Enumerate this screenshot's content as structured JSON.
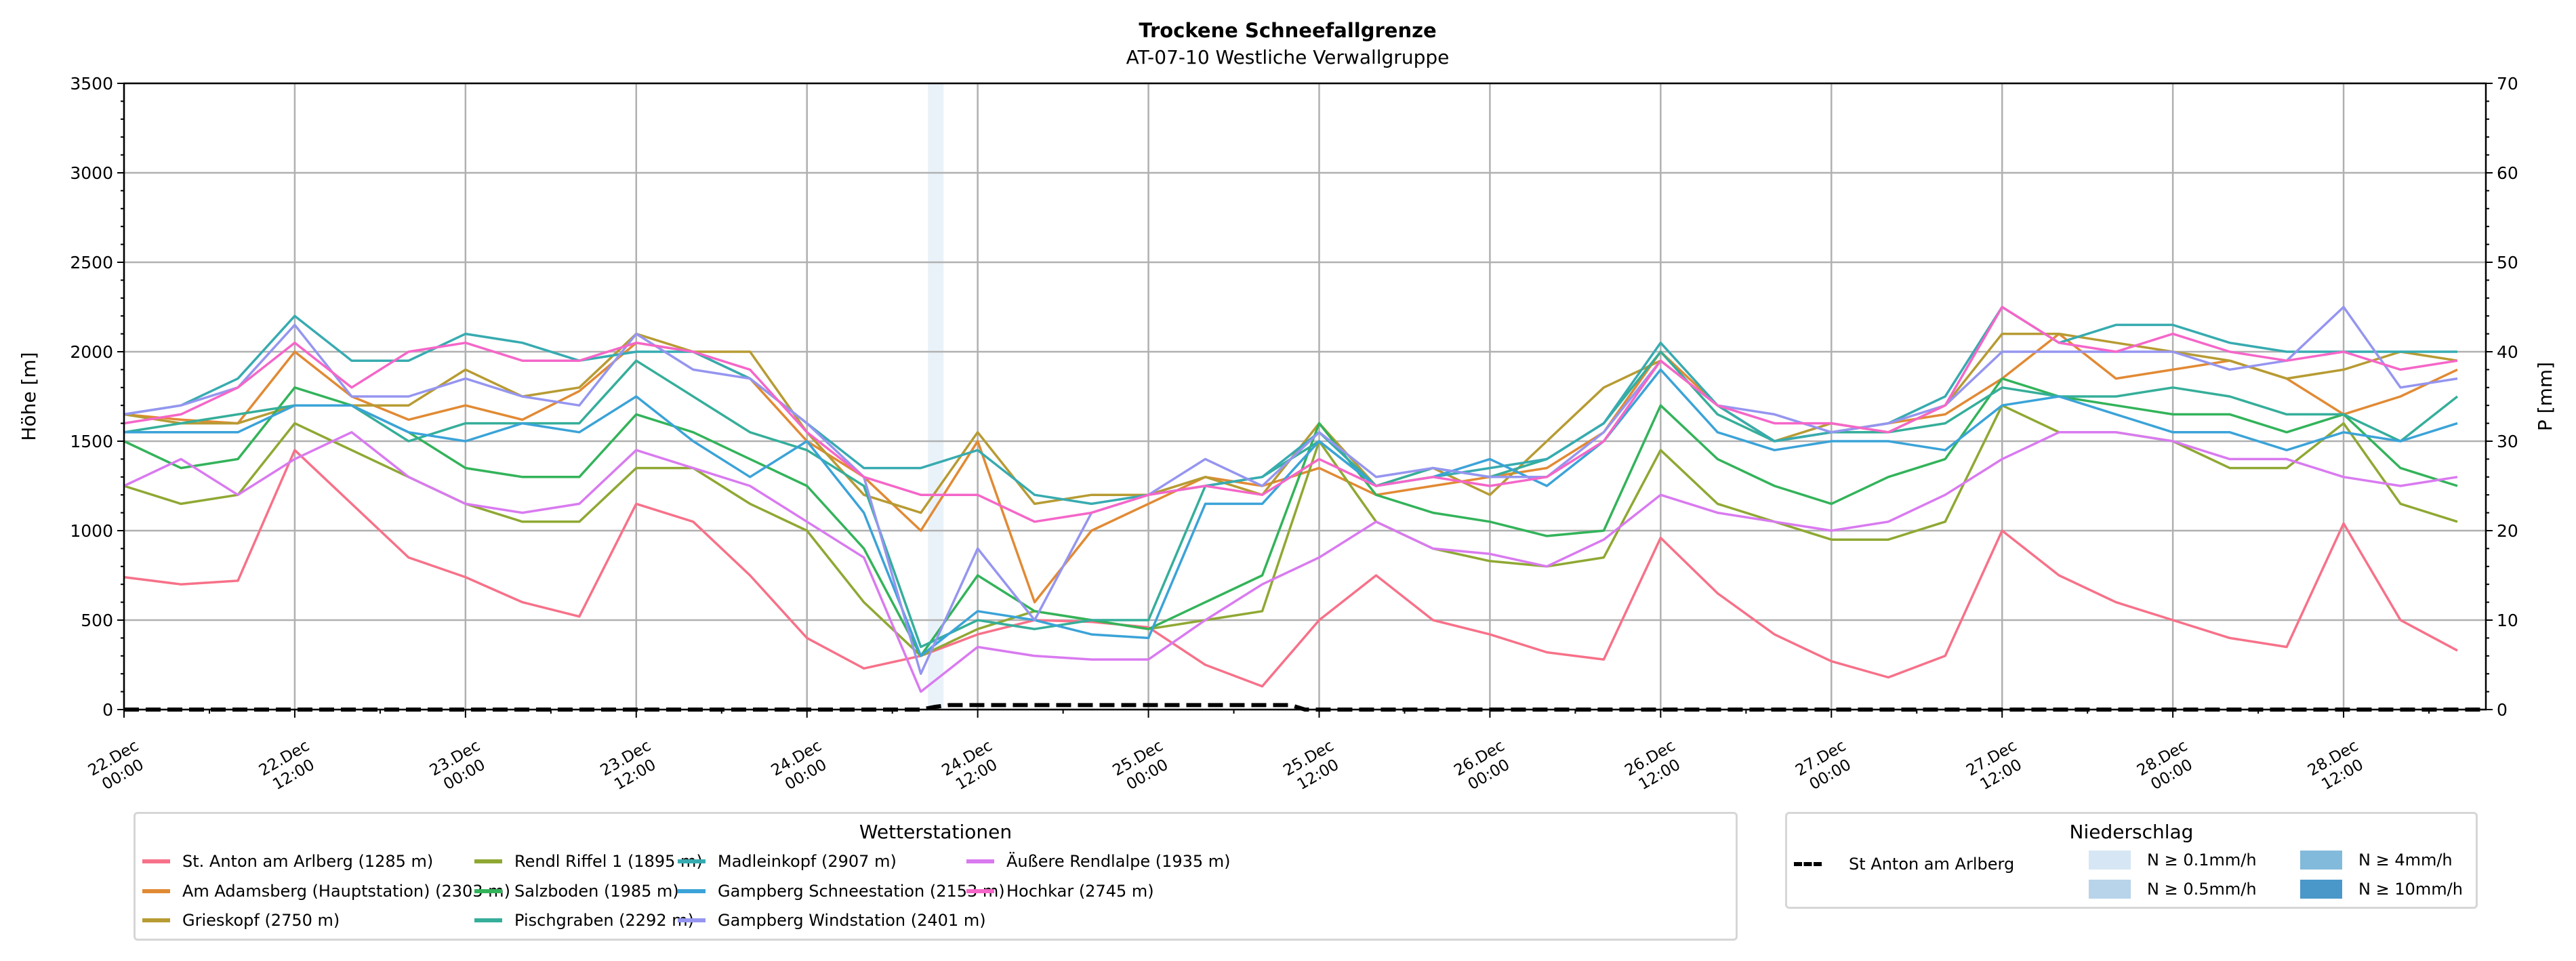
{
  "chart_data": {
    "type": "line",
    "title": "Trockene Schneefallgrenze",
    "subtitle": "AT-07-10 Westliche Verwallgruppe",
    "ylabel": "Höhe [m]",
    "ylabel_right": "P [mm]",
    "ylim": [
      0,
      3500
    ],
    "ylim_right": [
      0,
      70
    ],
    "yticks": [
      "0",
      "500",
      "1000",
      "1500",
      "2000",
      "2500",
      "3000",
      "3500"
    ],
    "yticks_right": [
      "0",
      "10",
      "20",
      "30",
      "40",
      "50",
      "60",
      "70"
    ],
    "x_unit": "hours since 22.Dec 00:00",
    "xlim": [
      0,
      166
    ],
    "xticks": [
      {
        "h": 0,
        "l1": "22.Dec",
        "l2": "00:00"
      },
      {
        "h": 12,
        "l1": "22.Dec",
        "l2": "12:00"
      },
      {
        "h": 24,
        "l1": "23.Dec",
        "l2": "00:00"
      },
      {
        "h": 36,
        "l1": "23.Dec",
        "l2": "12:00"
      },
      {
        "h": 48,
        "l1": "24.Dec",
        "l2": "00:00"
      },
      {
        "h": 60,
        "l1": "24.Dec",
        "l2": "12:00"
      },
      {
        "h": 72,
        "l1": "25.Dec",
        "l2": "00:00"
      },
      {
        "h": 84,
        "l1": "25.Dec",
        "l2": "12:00"
      },
      {
        "h": 96,
        "l1": "26.Dec",
        "l2": "00:00"
      },
      {
        "h": 108,
        "l1": "26.Dec",
        "l2": "12:00"
      },
      {
        "h": 120,
        "l1": "27.Dec",
        "l2": "00:00"
      },
      {
        "h": 132,
        "l1": "27.Dec",
        "l2": "12:00"
      },
      {
        "h": 144,
        "l1": "28.Dec",
        "l2": "00:00"
      },
      {
        "h": 156,
        "l1": "28.Dec",
        "l2": "12:00"
      }
    ],
    "grid": true,
    "x_step_hours": 4,
    "series": [
      {
        "name": "St. Anton am Arlberg (1285 m)",
        "color": "#f77189",
        "values": [
          740,
          700,
          720,
          1450,
          1150,
          850,
          740,
          600,
          520,
          1150,
          1050,
          750,
          400,
          230,
          300,
          420,
          500,
          490,
          460,
          250,
          130,
          500,
          750,
          500,
          420,
          320,
          280,
          960,
          650,
          420,
          270,
          180,
          300,
          1000,
          750,
          600,
          500,
          400,
          350,
          1040,
          500,
          330
        ]
      },
      {
        "name": "Am Adamsberg (Hauptstation) (2303 m)",
        "color": "#e18a34",
        "values": [
          1650,
          1620,
          1600,
          2000,
          1750,
          1620,
          1700,
          1620,
          1780,
          2050,
          2000,
          1850,
          1500,
          1300,
          1000,
          1500,
          600,
          1000,
          1150,
          1300,
          1250,
          1350,
          1200,
          1250,
          1300,
          1350,
          1550,
          2000,
          1700,
          1500,
          1550,
          1600,
          1650,
          1850,
          2100,
          1850,
          1900,
          1950,
          1850,
          1650,
          1750,
          1900
        ]
      },
      {
        "name": "Grieskopf (2750 m)",
        "color": "#b79b33",
        "values": [
          1650,
          1600,
          1600,
          1700,
          1700,
          1700,
          1900,
          1750,
          1800,
          2100,
          2000,
          2000,
          1550,
          1200,
          1100,
          1550,
          1150,
          1200,
          1200,
          1300,
          1200,
          1600,
          1250,
          1350,
          1200,
          1500,
          1800,
          1950,
          1700,
          1500,
          1600,
          1550,
          1700,
          2100,
          2100,
          2050,
          2000,
          1950,
          1850,
          1900,
          2000,
          1950
        ]
      },
      {
        "name": "Rendl Riffel 1 (1895 m)",
        "color": "#8fa833",
        "values": [
          1250,
          1150,
          1200,
          1600,
          1450,
          1300,
          1150,
          1050,
          1050,
          1350,
          1350,
          1150,
          1000,
          600,
          300,
          450,
          550,
          500,
          450,
          500,
          550,
          1500,
          1050,
          900,
          830,
          800,
          850,
          1450,
          1150,
          1050,
          950,
          950,
          1050,
          1700,
          1550,
          1550,
          1500,
          1350,
          1350,
          1600,
          1150,
          1050
        ]
      },
      {
        "name": "Salzboden (1985 m)",
        "color": "#33b35a",
        "values": [
          1500,
          1350,
          1400,
          1800,
          1700,
          1550,
          1350,
          1300,
          1300,
          1650,
          1550,
          1400,
          1250,
          900,
          300,
          750,
          550,
          500,
          450,
          600,
          750,
          1600,
          1200,
          1100,
          1050,
          970,
          1000,
          1700,
          1400,
          1250,
          1150,
          1300,
          1400,
          1850,
          1750,
          1700,
          1650,
          1650,
          1550,
          1650,
          1350,
          1250
        ]
      },
      {
        "name": "Pischgraben (2292 m)",
        "color": "#35ae9a",
        "values": [
          1550,
          1600,
          1650,
          1700,
          1700,
          1500,
          1600,
          1600,
          1600,
          1950,
          1750,
          1550,
          1450,
          1250,
          350,
          500,
          450,
          500,
          500,
          1250,
          1300,
          1500,
          1250,
          1350,
          1300,
          1400,
          1600,
          2000,
          1650,
          1500,
          1550,
          1550,
          1600,
          1800,
          1750,
          1750,
          1800,
          1750,
          1650,
          1650,
          1500,
          1750
        ]
      },
      {
        "name": "Madleinkopf (2907 m)",
        "color": "#37abb0",
        "values": [
          1650,
          1700,
          1850,
          2200,
          1950,
          1950,
          2100,
          2050,
          1950,
          2000,
          2000,
          1850,
          1600,
          1350,
          1350,
          1450,
          1200,
          1150,
          1200,
          1250,
          1300,
          1550,
          1250,
          1300,
          1350,
          1400,
          1600,
          2050,
          1700,
          1500,
          1550,
          1600,
          1750,
          2250,
          2050,
          2150,
          2150,
          2050,
          2000,
          2000,
          2000,
          2000
        ]
      },
      {
        "name": "Gampberg Schneestation (2153 m)",
        "color": "#3ba3d8",
        "values": [
          1550,
          1550,
          1550,
          1700,
          1700,
          1550,
          1500,
          1600,
          1550,
          1750,
          1500,
          1300,
          1500,
          1100,
          300,
          550,
          500,
          420,
          400,
          1150,
          1150,
          1500,
          1250,
          1300,
          1400,
          1250,
          1500,
          1900,
          1550,
          1450,
          1500,
          1500,
          1450,
          1700,
          1750,
          1650,
          1550,
          1550,
          1450,
          1550,
          1500,
          1600
        ]
      },
      {
        "name": "Gampberg Windstation (2401 m)",
        "color": "#9595f0",
        "values": [
          1650,
          1700,
          1800,
          2150,
          1750,
          1750,
          1850,
          1750,
          1700,
          2100,
          1900,
          1850,
          1600,
          1300,
          200,
          900,
          500,
          1100,
          1200,
          1400,
          1250,
          1550,
          1300,
          1350,
          1300,
          1300,
          1550,
          1950,
          1700,
          1650,
          1550,
          1600,
          1700,
          2000,
          2000,
          2000,
          2000,
          1900,
          1950,
          2250,
          1800,
          1850
        ]
      },
      {
        "name": "Äußere Rendlalpe (1935 m)",
        "color": "#d97af0",
        "values": [
          1250,
          1400,
          1200,
          1400,
          1550,
          1300,
          1150,
          1100,
          1150,
          1450,
          1350,
          1250,
          1050,
          850,
          100,
          350,
          300,
          280,
          280,
          500,
          700,
          850,
          1050,
          900,
          870,
          800,
          950,
          1200,
          1100,
          1050,
          1000,
          1050,
          1200,
          1400,
          1550,
          1550,
          1500,
          1400,
          1400,
          1300,
          1250,
          1300
        ]
      },
      {
        "name": "Hochkar (2745 m)",
        "color": "#f566c8",
        "values": [
          1600,
          1650,
          1800,
          2050,
          1800,
          2000,
          2050,
          1950,
          1950,
          2050,
          2000,
          1900,
          1550,
          1300,
          1200,
          1200,
          1050,
          1100,
          1200,
          1250,
          1200,
          1400,
          1250,
          1300,
          1250,
          1300,
          1500,
          1950,
          1700,
          1600,
          1600,
          1550,
          1700,
          2250,
          2050,
          2000,
          2100,
          2000,
          1950,
          2000,
          1900,
          1950
        ]
      }
    ],
    "precip": {
      "name": "St Anton am Arlberg",
      "hours": [
        0,
        56,
        57,
        58,
        82,
        83,
        166
      ],
      "values_mm": [
        0,
        0,
        0.3,
        0.5,
        0.5,
        0,
        0
      ],
      "shaded_intervals": [
        {
          "from_h": 56.5,
          "to_h": 57.6,
          "class": "N ≥ 0.1mm/h"
        }
      ]
    },
    "legend_stations_title": "Wetterstationen",
    "legend_precip_title": "Niederschlag",
    "precip_classes": [
      {
        "label": "N ≥ 0.1mm/h",
        "color": "#d6e6f4"
      },
      {
        "label": "N ≥ 0.5mm/h",
        "color": "#b7d4ea"
      },
      {
        "label": "N ≥ 4mm/h",
        "color": "#82badb"
      },
      {
        "label": "N ≥ 10mm/h",
        "color": "#4a98c9"
      }
    ]
  }
}
